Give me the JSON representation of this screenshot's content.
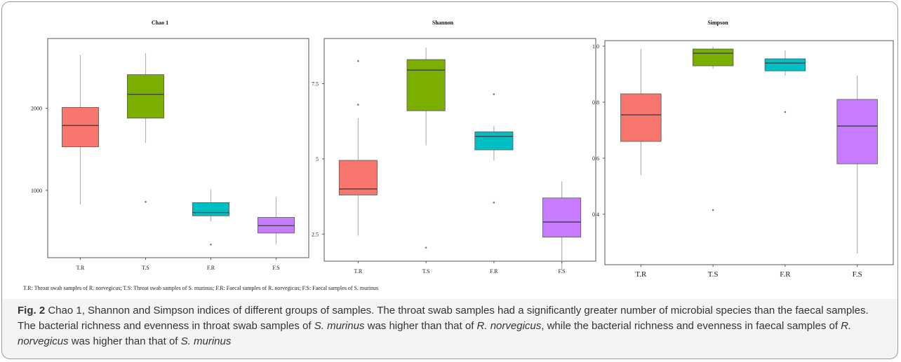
{
  "chart_data": [
    {
      "type": "box",
      "title": "Chao 1",
      "categories": [
        "T.R",
        "T.S",
        "F.R",
        "F.S"
      ],
      "colors": [
        "#f8766d",
        "#7cae00",
        "#00bfc4",
        "#c77cff"
      ],
      "ylim": [
        180,
        2850
      ],
      "yticks": [
        1000,
        2000
      ],
      "yticklabels": [
        "1000",
        "2000"
      ],
      "boxes": [
        {
          "min": 830,
          "q1": 1530,
          "median": 1790,
          "q3": 2010,
          "max": 2650,
          "outliers": []
        },
        {
          "min": 1580,
          "q1": 1880,
          "median": 2170,
          "q3": 2410,
          "max": 2670,
          "outliers": [
            860
          ]
        },
        {
          "min": 620,
          "q1": 690,
          "median": 730,
          "q3": 850,
          "max": 1010,
          "outliers": [
            340
          ]
        },
        {
          "min": 340,
          "q1": 480,
          "median": 570,
          "q3": 670,
          "max": 920,
          "outliers": []
        }
      ],
      "grid": false
    },
    {
      "type": "box",
      "title": "Shannon",
      "categories": [
        "T.R",
        "T.S",
        "F.R",
        "F.S"
      ],
      "colors": [
        "#f8766d",
        "#7cae00",
        "#00bfc4",
        "#c77cff"
      ],
      "ylim": [
        1.6,
        9.0
      ],
      "yticks": [
        2.5,
        5,
        7.5
      ],
      "yticklabels": [
        "2.5",
        "5",
        "7.5"
      ],
      "boxes": [
        {
          "min": 2.45,
          "q1": 3.8,
          "median": 4.0,
          "q3": 4.95,
          "max": 6.35,
          "outliers": [
            6.8,
            8.25
          ]
        },
        {
          "min": 5.45,
          "q1": 6.6,
          "median": 7.95,
          "q3": 8.3,
          "max": 8.7,
          "outliers": [
            2.05
          ]
        },
        {
          "min": 4.95,
          "q1": 5.3,
          "median": 5.75,
          "q3": 5.9,
          "max": 6.1,
          "outliers": [
            7.15,
            3.55
          ]
        },
        {
          "min": 1.3,
          "q1": 2.4,
          "median": 2.9,
          "q3": 3.7,
          "max": 4.25,
          "outliers": []
        }
      ],
      "grid": false
    },
    {
      "type": "box",
      "title": "Simpson",
      "categories": [
        "T.R",
        "T.S",
        "F.R",
        "F.S"
      ],
      "colors": [
        "#f8766d",
        "#7cae00",
        "#00bfc4",
        "#c77cff"
      ],
      "ylim": [
        0.22,
        1.02
      ],
      "yticks": [
        0.4,
        0.6,
        0.8,
        1.0
      ],
      "yticklabels": [
        "0.4",
        "0.6",
        "0.8",
        "1.0"
      ],
      "boxes": [
        {
          "min": 0.54,
          "q1": 0.66,
          "median": 0.755,
          "q3": 0.83,
          "max": 0.99,
          "outliers": []
        },
        {
          "min": 0.92,
          "q1": 0.93,
          "median": 0.975,
          "q3": 0.99,
          "max": 0.998,
          "outliers": [
            0.415
          ]
        },
        {
          "min": 0.895,
          "q1": 0.912,
          "median": 0.94,
          "q3": 0.955,
          "max": 0.985,
          "outliers": [
            0.765
          ]
        },
        {
          "min": 0.26,
          "q1": 0.58,
          "median": 0.715,
          "q3": 0.81,
          "max": 0.895,
          "outliers": []
        }
      ],
      "grid": false
    }
  ],
  "legend_note": "T.R: Throat swab samples of R. norvegicus; T.S: Throat swab samples of S. murinus; F.R: Faecal samples of R. norvegicus; F.S: Faecal samples of S. murinus",
  "caption": {
    "label": "Fig. 2",
    "text_1": " Chao 1, Shannon and Simpson indices of different groups of samples. The throat swab samples had a significantly greater number of microbial species than the faecal samples. The bacterial richness and evenness in throat swab samples of ",
    "species_1": "S. murinus",
    "text_2": " was higher than that of ",
    "species_2": "R. norvegicus",
    "text_3": ", while the bacterial richness and evenness in faecal samples of ",
    "species_3": "R. norvegicus",
    "text_4": " was higher than that of ",
    "species_4": "S. murinus"
  }
}
